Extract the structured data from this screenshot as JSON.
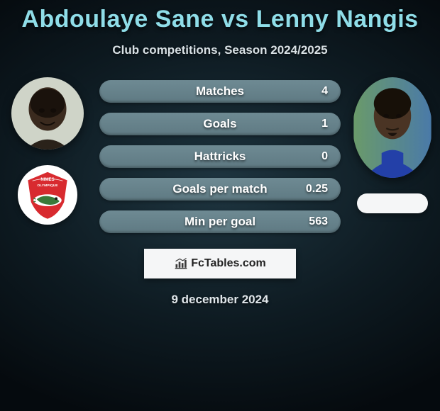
{
  "title": {
    "text": "Abdoulaye Sane vs Lenny Nangis",
    "color": "#8fdde8",
    "fontsize": 34
  },
  "subtitle": "Club competitions, Season 2024/2025",
  "date": "9 december 2024",
  "bar_colors": {
    "fill": "#5f7a83",
    "fill_light": "#6e8a93"
  },
  "bars": [
    {
      "label": "Matches",
      "value": "4"
    },
    {
      "label": "Goals",
      "value": "1"
    },
    {
      "label": "Hattricks",
      "value": "0"
    },
    {
      "label": "Goals per match",
      "value": "0.25"
    },
    {
      "label": "Min per goal",
      "value": "563"
    }
  ],
  "left": {
    "player_name": "Abdoulaye Sane",
    "club_text": "NIMES OLYMPIQUE",
    "club_primary": "#d82a2f",
    "club_accent": "#3a7a3a"
  },
  "right": {
    "player_name": "Lenny Nangis"
  },
  "badge": {
    "text": "FcTables.com",
    "icon_color": "#3a3a3a"
  },
  "background": "#0e1b22"
}
